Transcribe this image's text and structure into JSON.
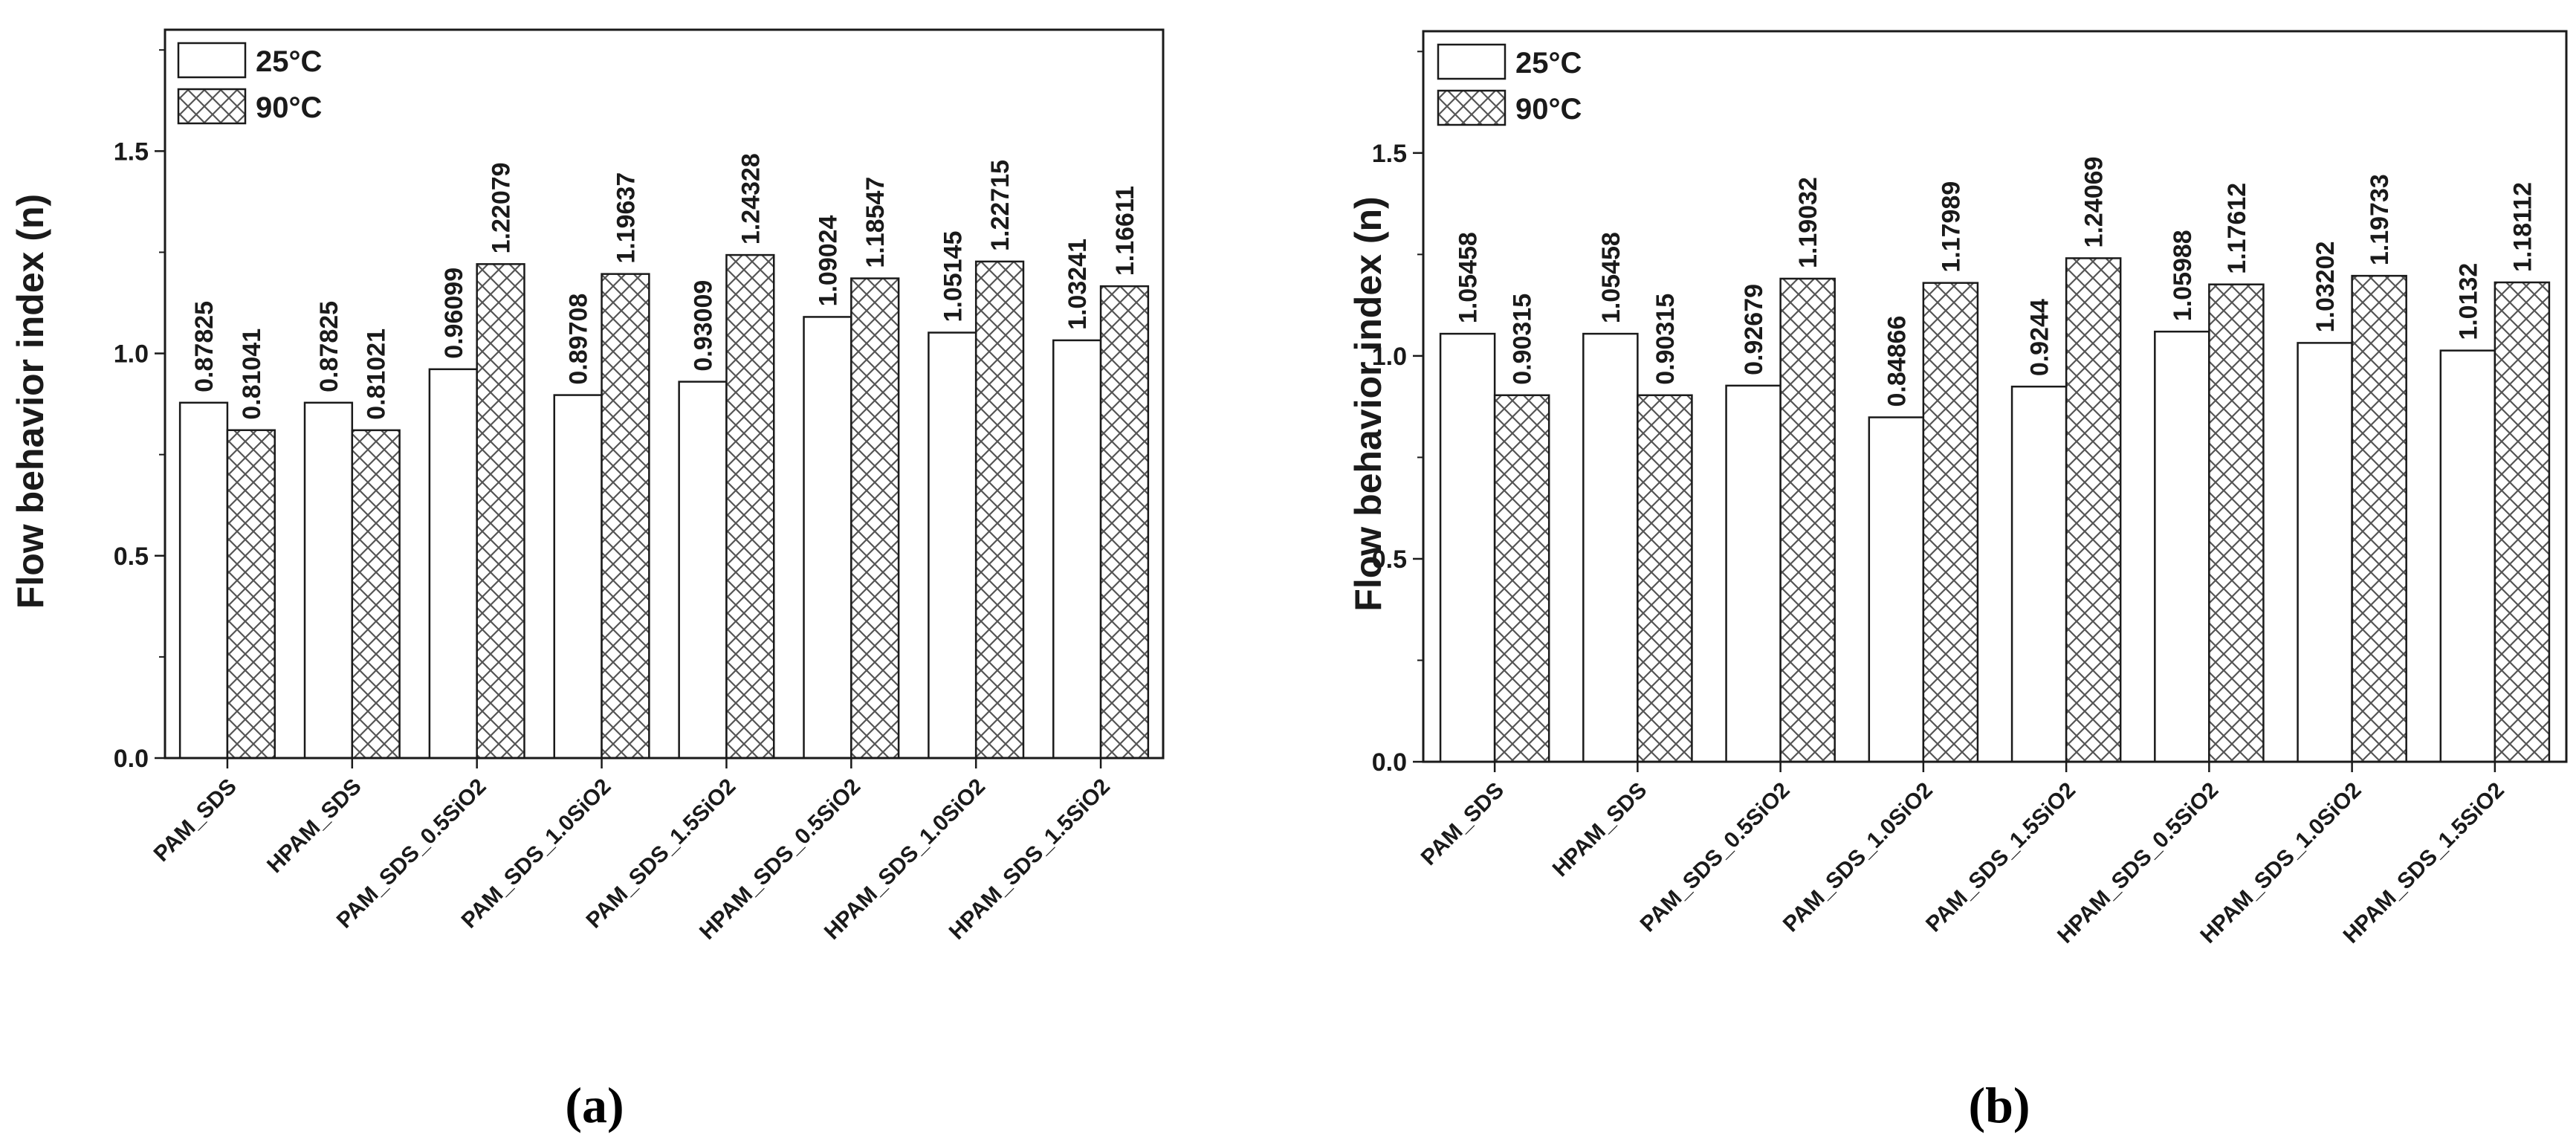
{
  "chart_data": [
    {
      "type": "bar",
      "panel_label": "(a)",
      "ylabel": "Flow behavior index (n)",
      "ylim": [
        0,
        1.8
      ],
      "yticks": [
        0.0,
        0.5,
        1.0,
        1.5
      ],
      "ytick_labels": [
        "0.0",
        "0.5",
        "1.0",
        "1.5"
      ],
      "grid": false,
      "legend_position": "top-left",
      "categories": [
        "PAM_SDS",
        "HPAM_SDS",
        "PAM_SDS_0.5SiO2",
        "PAM_SDS_1.0SiO2",
        "PAM_SDS_1.5SiO2",
        "HPAM_SDS_0.5SiO2",
        "HPAM_SDS_1.0SiO2",
        "HPAM_SDS_1.5SiO2"
      ],
      "series": [
        {
          "name": "25°C",
          "fill": "plain",
          "values": [
            0.87825,
            0.87825,
            0.96099,
            0.89708,
            0.93009,
            1.09024,
            1.05145,
            1.03241
          ],
          "value_labels": [
            "0.87825",
            "0.87825",
            "0.96099",
            "0.89708",
            "0.93009",
            "1.09024",
            "1.05145",
            "1.03241"
          ]
        },
        {
          "name": "90°C",
          "fill": "crosshatch",
          "values": [
            0.81041,
            0.81021,
            1.22079,
            1.19637,
            1.24328,
            1.18547,
            1.22715,
            1.16611
          ],
          "value_labels": [
            "0.81041",
            "0.81021",
            "1.22079",
            "1.19637",
            "1.24328",
            "1.18547",
            "1.22715",
            "1.16611"
          ]
        }
      ]
    },
    {
      "type": "bar",
      "panel_label": "(b)",
      "ylabel": "Flow behavior index (n)",
      "ylim": [
        0,
        1.8
      ],
      "yticks": [
        0.0,
        0.5,
        1.0,
        1.5
      ],
      "ytick_labels": [
        "0.0",
        "0.5",
        "1.0",
        "1.5"
      ],
      "grid": false,
      "legend_position": "top-left",
      "categories": [
        "PAM_SDS",
        "HPAM_SDS",
        "PAM_SDS_0.5SiO2",
        "PAM_SDS_1.0SiO2",
        "PAM_SDS_1.5SiO2",
        "HPAM_SDS_0.5SiO2",
        "HPAM_SDS_1.0SiO2",
        "HPAM_SDS_1.5SiO2"
      ],
      "series": [
        {
          "name": "25°C",
          "fill": "plain",
          "values": [
            1.05458,
            1.05458,
            0.92679,
            0.84866,
            0.9244,
            1.05988,
            1.03202,
            1.0132
          ],
          "value_labels": [
            "1.05458",
            "1.05458",
            "0.92679",
            "0.84866",
            "0.9244",
            "1.05988",
            "1.03202",
            "1.0132"
          ]
        },
        {
          "name": "90°C",
          "fill": "crosshatch",
          "values": [
            0.90315,
            0.90315,
            1.19032,
            1.17989,
            1.24069,
            1.17612,
            1.19733,
            1.18112
          ],
          "value_labels": [
            "0.90315",
            "0.90315",
            "1.19032",
            "1.17989",
            "1.24069",
            "1.17612",
            "1.19733",
            "1.18112"
          ]
        }
      ]
    }
  ],
  "colors": {
    "axis": "#1a1a1a",
    "bar_fill": "#ffffff",
    "hatch": "#555555"
  }
}
